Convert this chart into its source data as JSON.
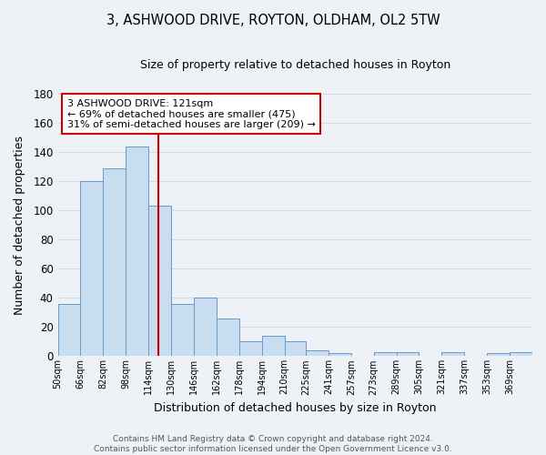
{
  "title": "3, ASHWOOD DRIVE, ROYTON, OLDHAM, OL2 5TW",
  "subtitle": "Size of property relative to detached houses in Royton",
  "xlabel": "Distribution of detached houses by size in Royton",
  "ylabel": "Number of detached properties",
  "bar_color": "#c8ddf0",
  "bar_edge_color": "#6699cc",
  "bins": [
    50,
    66,
    82,
    98,
    114,
    130,
    146,
    162,
    178,
    194,
    210,
    225,
    241,
    257,
    273,
    289,
    305,
    321,
    337,
    353,
    369
  ],
  "counts": [
    36,
    120,
    129,
    144,
    103,
    36,
    40,
    26,
    10,
    14,
    10,
    4,
    2,
    0,
    3,
    3,
    0,
    3,
    0,
    2,
    3
  ],
  "tick_labels": [
    "50sqm",
    "66sqm",
    "82sqm",
    "98sqm",
    "114sqm",
    "130sqm",
    "146sqm",
    "162sqm",
    "178sqm",
    "194sqm",
    "210sqm",
    "225sqm",
    "241sqm",
    "257sqm",
    "273sqm",
    "289sqm",
    "305sqm",
    "321sqm",
    "337sqm",
    "353sqm",
    "369sqm"
  ],
  "ylim": [
    0,
    180
  ],
  "yticks": [
    0,
    20,
    40,
    60,
    80,
    100,
    120,
    140,
    160,
    180
  ],
  "property_line_x": 121,
  "property_line_color": "#cc0000",
  "annotation_title": "3 ASHWOOD DRIVE: 121sqm",
  "annotation_line1": "← 69% of detached houses are smaller (475)",
  "annotation_line2": "31% of semi-detached houses are larger (209) →",
  "annotation_box_color": "white",
  "annotation_box_edge_color": "#cc0000",
  "footer_line1": "Contains HM Land Registry data © Crown copyright and database right 2024.",
  "footer_line2": "Contains public sector information licensed under the Open Government Licence v3.0.",
  "background_color": "#eef2f7",
  "grid_color": "#d0dce8"
}
